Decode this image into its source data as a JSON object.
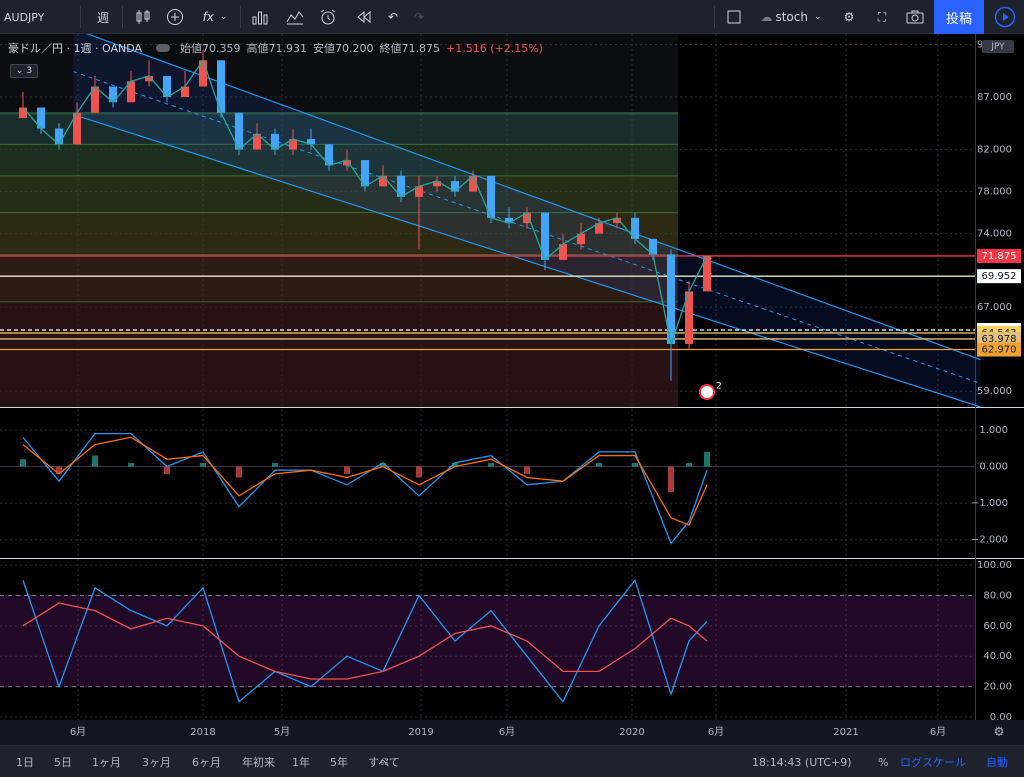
{
  "toolbar": {
    "symbol": "AUDJPY",
    "interval": "週",
    "fx": "fx",
    "layout_name": "stoch",
    "publish_label": "投稿"
  },
  "legend": {
    "title": "豪ドル／円 · 1週 · OANDA",
    "open": "始値70.359",
    "high": "高値71.931",
    "low": "安値70.200",
    "close": "終値71.875",
    "change": "+1.516 (+2.15%)",
    "collapsed_count": "3"
  },
  "price_panel": {
    "currency": "JPY",
    "scale_labels": [
      "92.000",
      "87.000",
      "82.000",
      "78.000",
      "74.000",
      "67.000",
      "59.000"
    ],
    "price_badges": [
      {
        "text": "71.875",
        "bg": "#f23645",
        "fg": "#ffffff"
      },
      {
        "text": "69.952",
        "bg": "#ffffff",
        "fg": "#131722"
      },
      {
        "text": "64.826",
        "bg": "#ffffff",
        "fg": "#131722"
      },
      {
        "text": "64.543",
        "bg": "#f5d061",
        "fg": "#131722"
      },
      {
        "text": "63.978",
        "bg": "#e0c07a",
        "fg": "#131722"
      },
      {
        "text": "62.970",
        "bg": "#f0a030",
        "fg": "#131722"
      }
    ],
    "event_marker": "2"
  },
  "macd_panel": {
    "scale_labels": [
      "1.000",
      "0.000",
      "−1.000",
      "−2.000"
    ]
  },
  "stoch_panel": {
    "scale_labels": [
      "100.00",
      "80.00",
      "60.00",
      "40.00",
      "20.00",
      "0.00"
    ]
  },
  "time_axis": {
    "labels": [
      "6月",
      "2018",
      "5月",
      "2019",
      "6月",
      "2020",
      "6月",
      "2021",
      "6月"
    ]
  },
  "bottombar": {
    "ranges": [
      "1日",
      "5日",
      "1ヶ月",
      "3ヶ月",
      "6ヶ月",
      "年初来",
      "1年",
      "5年",
      "すべて"
    ],
    "clock": "18:14:43 (UTC+9)",
    "percent": "%",
    "log_scale": "ログスケール",
    "auto": "自動"
  },
  "colors": {
    "background": "#131722",
    "up": "#ef5350",
    "down": "#42a5f5",
    "accent": "#2962ff"
  },
  "chart_data": [
    {
      "type": "candlestick",
      "title": "豪ドル／円 · 1週 · OANDA",
      "ylim": [
        57.5,
        93.0
      ],
      "x": [
        "2017-03",
        "2017-04",
        "2017-05",
        "2017-06",
        "2017-07",
        "2017-08",
        "2017-09",
        "2017-10",
        "2017-11",
        "2017-12",
        "2018-01",
        "2018-02",
        "2018-03",
        "2018-04",
        "2018-05",
        "2018-06",
        "2018-07",
        "2018-08",
        "2018-09",
        "2018-10",
        "2018-11",
        "2018-12",
        "2019-01",
        "2019-02",
        "2019-03",
        "2019-04",
        "2019-05",
        "2019-06",
        "2019-07",
        "2019-08",
        "2019-09",
        "2019-10",
        "2019-11",
        "2019-12",
        "2020-01",
        "2020-02",
        "2020-03",
        "2020-04",
        "2020-05"
      ],
      "close": [
        86.0,
        84.0,
        82.5,
        85.5,
        88.0,
        86.5,
        88.5,
        89.0,
        87.0,
        88.0,
        90.5,
        85.5,
        82.0,
        83.5,
        82.0,
        83.0,
        82.5,
        80.5,
        81.0,
        78.5,
        79.5,
        77.5,
        78.5,
        79.0,
        78.0,
        79.5,
        75.5,
        75.0,
        76.0,
        71.5,
        73.0,
        74.0,
        75.0,
        75.5,
        73.5,
        72.0,
        63.5,
        68.5,
        71.875
      ],
      "high": [
        87.5,
        86.0,
        84.5,
        86.5,
        89.0,
        88.0,
        89.5,
        90.5,
        89.0,
        89.5,
        91.5,
        90.5,
        85.5,
        84.5,
        84.0,
        84.0,
        84.0,
        82.5,
        82.0,
        81.0,
        80.5,
        80.0,
        79.5,
        79.5,
        79.5,
        80.0,
        79.5,
        76.5,
        76.5,
        76.0,
        74.0,
        75.0,
        75.5,
        76.0,
        76.0,
        73.5,
        72.5,
        69.5,
        71.931
      ],
      "low": [
        85.0,
        83.5,
        82.0,
        82.5,
        85.5,
        86.0,
        86.5,
        88.0,
        86.5,
        87.0,
        88.0,
        85.0,
        81.5,
        82.0,
        81.5,
        81.5,
        82.0,
        80.0,
        80.0,
        78.0,
        78.5,
        77.0,
        72.5,
        78.0,
        77.5,
        78.0,
        75.0,
        74.5,
        74.5,
        70.5,
        71.5,
        72.5,
        74.0,
        74.5,
        73.0,
        71.5,
        60.0,
        63.0,
        70.2
      ],
      "horizontal_levels": [
        71.875,
        69.952,
        64.826,
        64.543,
        63.978,
        62.97
      ],
      "channel": {
        "upper": [
          [
            2017.6,
            92.0
          ],
          [
            2020.6,
            69.5
          ]
        ],
        "lower": [
          [
            2017.3,
            86.0
          ],
          [
            2021.6,
            57.5
          ]
        ]
      },
      "fib_zone_levels": [
        85.5,
        82.5,
        79.5,
        76.0,
        72.0,
        67.5
      ]
    },
    {
      "type": "line",
      "title": "MACD",
      "ylim": [
        -2.5,
        1.6
      ],
      "x": [
        "2017-03",
        "2017-05",
        "2017-07",
        "2017-09",
        "2017-11",
        "2018-01",
        "2018-03",
        "2018-05",
        "2018-07",
        "2018-09",
        "2018-11",
        "2019-01",
        "2019-03",
        "2019-05",
        "2019-07",
        "2019-09",
        "2019-11",
        "2020-01",
        "2020-03",
        "2020-04",
        "2020-05"
      ],
      "series": [
        {
          "values": [
            0.8,
            -0.4,
            0.9,
            0.9,
            0.0,
            0.4,
            -1.1,
            -0.1,
            -0.1,
            -0.5,
            0.1,
            -0.8,
            0.1,
            0.3,
            -0.5,
            -0.4,
            0.4,
            0.4,
            -2.1,
            -1.5,
            -0.1
          ]
        },
        {
          "values": [
            0.6,
            -0.2,
            0.6,
            0.8,
            0.2,
            0.3,
            -0.8,
            -0.2,
            -0.1,
            -0.3,
            0.0,
            -0.5,
            0.0,
            0.2,
            -0.3,
            -0.4,
            0.3,
            0.3,
            -1.4,
            -1.6,
            -0.5
          ]
        }
      ]
    },
    {
      "type": "line",
      "title": "Stochastic",
      "ylim": [
        -2,
        104
      ],
      "x": [
        "2017-03",
        "2017-05",
        "2017-07",
        "2017-09",
        "2017-11",
        "2018-01",
        "2018-03",
        "2018-05",
        "2018-07",
        "2018-09",
        "2018-11",
        "2019-01",
        "2019-03",
        "2019-05",
        "2019-07",
        "2019-09",
        "2019-11",
        "2020-01",
        "2020-03",
        "2020-04",
        "2020-05"
      ],
      "series": [
        {
          "values": [
            90,
            20,
            85,
            70,
            60,
            85,
            10,
            30,
            20,
            40,
            30,
            80,
            50,
            70,
            40,
            10,
            60,
            90,
            15,
            50,
            63
          ]
        },
        {
          "values": [
            60,
            75,
            70,
            58,
            65,
            60,
            40,
            30,
            25,
            25,
            30,
            40,
            55,
            60,
            50,
            30,
            30,
            45,
            65,
            60,
            50
          ]
        }
      ],
      "bands": [
        20,
        80
      ]
    }
  ]
}
